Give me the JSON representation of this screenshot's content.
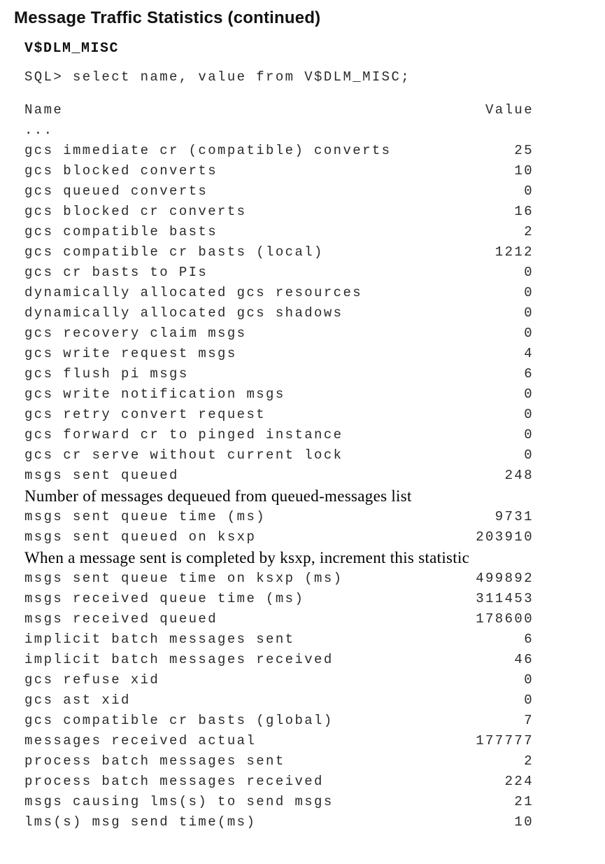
{
  "page": {
    "title": "Message Traffic Statistics (continued)",
    "section_heading": "V$DLM_MISC",
    "sql_line": "SQL> select name, value from V$DLM_MISC;",
    "columns": {
      "name": "Name",
      "value": "Value"
    },
    "ellipsis": "..."
  },
  "entries": [
    {
      "type": "row",
      "name": "gcs immediate cr (compatible) converts",
      "value": "25"
    },
    {
      "type": "row",
      "name": "gcs blocked converts",
      "value": "10"
    },
    {
      "type": "row",
      "name": "gcs queued converts",
      "value": "0"
    },
    {
      "type": "row",
      "name": "gcs blocked cr converts",
      "value": "16"
    },
    {
      "type": "row",
      "name": "gcs compatible basts",
      "value": "2"
    },
    {
      "type": "row",
      "name": "gcs compatible cr basts (local)",
      "value": "1212"
    },
    {
      "type": "row",
      "name": "gcs cr basts to PIs",
      "value": "0"
    },
    {
      "type": "row",
      "name": "dynamically allocated gcs resources",
      "value": "0"
    },
    {
      "type": "row",
      "name": "dynamically allocated gcs shadows",
      "value": "0"
    },
    {
      "type": "row",
      "name": "gcs recovery claim msgs",
      "value": "0"
    },
    {
      "type": "row",
      "name": "gcs write request msgs",
      "value": "4"
    },
    {
      "type": "row",
      "name": "gcs flush pi msgs",
      "value": "6"
    },
    {
      "type": "row",
      "name": "gcs write notification msgs",
      "value": "0"
    },
    {
      "type": "row",
      "name": "gcs retry convert request",
      "value": "0"
    },
    {
      "type": "row",
      "name": "gcs forward cr to pinged instance",
      "value": "0"
    },
    {
      "type": "row",
      "name": "gcs cr serve without current lock",
      "value": "0"
    },
    {
      "type": "row",
      "name": "msgs sent queued",
      "value": "248"
    },
    {
      "type": "note",
      "text": "Number of messages dequeued from queued-messages list"
    },
    {
      "type": "row",
      "name": "msgs sent queue time (ms)",
      "value": "9731"
    },
    {
      "type": "row",
      "name": "msgs sent queued on ksxp",
      "value": "203910"
    },
    {
      "type": "note",
      "text": "When a message sent is completed by ksxp, increment this statistic"
    },
    {
      "type": "row",
      "name": "msgs sent queue time on ksxp (ms)",
      "value": "499892"
    },
    {
      "type": "row",
      "name": "msgs received queue time (ms)",
      "value": "311453"
    },
    {
      "type": "row",
      "name": "msgs received queued",
      "value": "178600"
    },
    {
      "type": "row",
      "name": "implicit batch messages sent",
      "value": "6"
    },
    {
      "type": "row",
      "name": "implicit batch messages received",
      "value": "46"
    },
    {
      "type": "row",
      "name": "gcs refuse xid",
      "value": "0"
    },
    {
      "type": "row",
      "name": "gcs ast xid",
      "value": "0"
    },
    {
      "type": "row",
      "name": "gcs compatible cr basts (global)",
      "value": "7"
    },
    {
      "type": "row",
      "name": "messages received actual",
      "value": "177777"
    },
    {
      "type": "row",
      "name": "process batch messages sent",
      "value": "2"
    },
    {
      "type": "row",
      "name": "process batch messages received",
      "value": "224"
    },
    {
      "type": "row",
      "name": "msgs causing lms(s) to send msgs",
      "value": "21"
    },
    {
      "type": "row",
      "name": "lms(s) msg send time(ms)",
      "value": "10"
    }
  ]
}
